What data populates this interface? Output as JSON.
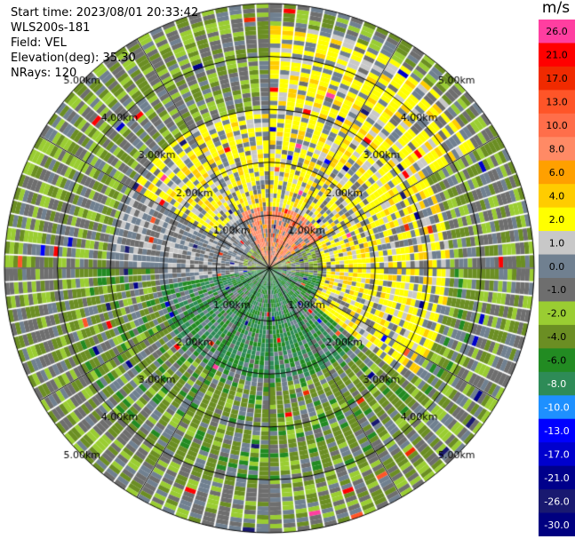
{
  "header": {
    "start_time": "Start time: 2023/08/01 20:33:42",
    "instrument": "WLS200s-181",
    "field": "Field: VEL",
    "elevation": "Elevation(deg): 35.30",
    "nrays": "NRays: 120"
  },
  "colorbar": {
    "unit": "m/s",
    "bins": [
      {
        "label": "26.0",
        "color": "#ff3ea0"
      },
      {
        "label": "21.0",
        "color": "#ff0000"
      },
      {
        "label": "17.0",
        "color": "#f02a00"
      },
      {
        "label": "13.0",
        "color": "#ff5528"
      },
      {
        "label": "10.0",
        "color": "#ff6e4a"
      },
      {
        "label": "8.0",
        "color": "#ff8a65"
      },
      {
        "label": "6.0",
        "color": "#ffa000"
      },
      {
        "label": "4.0",
        "color": "#ffcc00"
      },
      {
        "label": "2.0",
        "color": "#ffff00"
      },
      {
        "label": "1.0",
        "color": "#c8c8c8"
      },
      {
        "label": "0.0",
        "color": "#708090"
      },
      {
        "label": "-1.0",
        "color": "#6e6e6e"
      },
      {
        "label": "-2.0",
        "color": "#9acd32"
      },
      {
        "label": "-4.0",
        "color": "#6b8e23"
      },
      {
        "label": "-6.0",
        "color": "#228b22"
      },
      {
        "label": "-8.0",
        "color": "#2e8b57"
      },
      {
        "label": "-10.0",
        "color": "#1e90ff"
      },
      {
        "label": "-13.0",
        "color": "#0000ff"
      },
      {
        "label": "-17.0",
        "color": "#0000cd"
      },
      {
        "label": "-21.0",
        "color": "#00008b"
      },
      {
        "label": "-26.0",
        "color": "#191970"
      },
      {
        "label": "-30.0",
        "color": "#000080"
      }
    ]
  },
  "chart_data": {
    "type": "heatmap",
    "subtype": "ppi-polar",
    "range_rings_km": [
      1,
      2,
      3,
      4,
      5
    ],
    "ring_labels": [
      "1.00km",
      "2.00km",
      "3.00km",
      "4.00km",
      "5.00km"
    ],
    "max_range_km": 5.0,
    "spokes_deg": [
      0,
      30,
      60,
      90,
      120,
      150,
      180,
      210,
      240,
      270,
      300,
      330
    ],
    "nrays": 120,
    "ngates": 60,
    "field": "VEL",
    "units": "m/s",
    "sectors": [
      {
        "az_from": 330,
        "az_to": 60,
        "r_from_km": 0,
        "r_to_km": 1.2,
        "value": 9
      },
      {
        "az_from": 300,
        "az_to": 90,
        "r_from_km": 1.2,
        "r_to_km": 3.0,
        "value": 3
      },
      {
        "az_from": 0,
        "az_to": 60,
        "r_from_km": 3.0,
        "r_to_km": 4.6,
        "value": 3
      },
      {
        "az_from": 60,
        "az_to": 130,
        "r_from_km": 1.0,
        "r_to_km": 3.4,
        "value": 3
      },
      {
        "az_from": 100,
        "az_to": 260,
        "r_from_km": 0,
        "r_to_km": 2.2,
        "value": -6
      },
      {
        "az_from": 90,
        "az_to": 270,
        "r_from_km": 2.2,
        "r_to_km": 4.0,
        "value": -3
      },
      {
        "az_from": 240,
        "az_to": 330,
        "r_from_km": 0.5,
        "r_to_km": 3.0,
        "value": 0.5
      },
      {
        "az_from": 0,
        "az_to": 360,
        "r_from_km": 4.0,
        "r_to_km": 5.0,
        "value": -1.5
      }
    ]
  }
}
